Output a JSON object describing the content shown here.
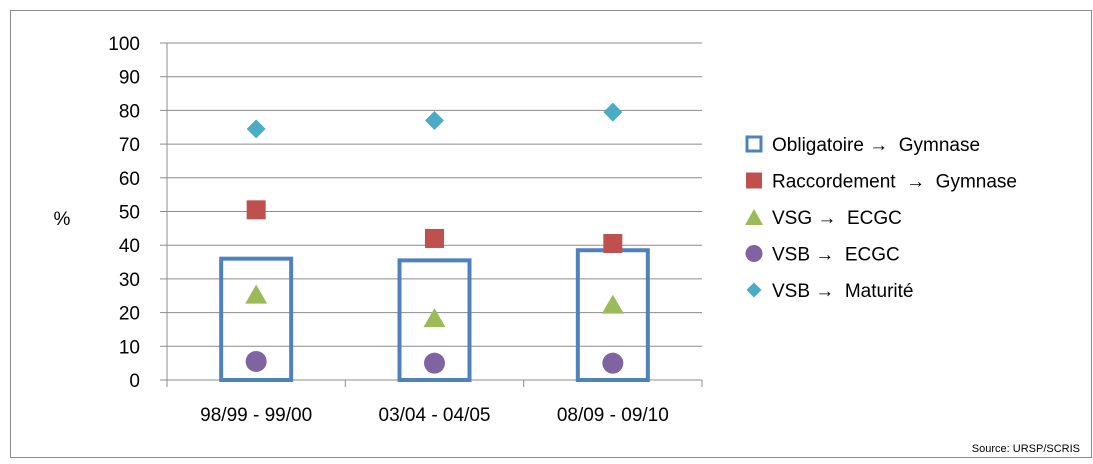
{
  "chart_data": {
    "type": "scatter",
    "ylabel": "%",
    "ylim": [
      0,
      100
    ],
    "yticks": [
      0,
      10,
      20,
      30,
      40,
      50,
      60,
      70,
      80,
      90,
      100
    ],
    "grid": true,
    "legend_position": "right",
    "categories": [
      "98/99 - 99/00",
      "03/04 - 04/05",
      "08/09 - 09/10"
    ],
    "series": [
      {
        "name": "Obligatoire →  Gymnase",
        "marker": "open-square",
        "color": "#4F81BD",
        "values": [
          36,
          35.5,
          38.5
        ]
      },
      {
        "name": "Raccordement  →  Gymnase",
        "marker": "square",
        "color": "#C0504D",
        "values": [
          50.5,
          42,
          40.5
        ]
      },
      {
        "name": "VSG →  ECGC",
        "marker": "triangle",
        "color": "#9BBB59",
        "values": [
          25.5,
          18.5,
          22.5
        ]
      },
      {
        "name": "VSB →  ECGC",
        "marker": "circle",
        "color": "#8064A2",
        "values": [
          5.5,
          5,
          5
        ]
      },
      {
        "name": "VSB →  Maturité",
        "marker": "diamond",
        "color": "#4BACC6",
        "values": [
          74.5,
          77,
          79.5
        ]
      }
    ],
    "source": "Source: URSP/SCRIS"
  }
}
